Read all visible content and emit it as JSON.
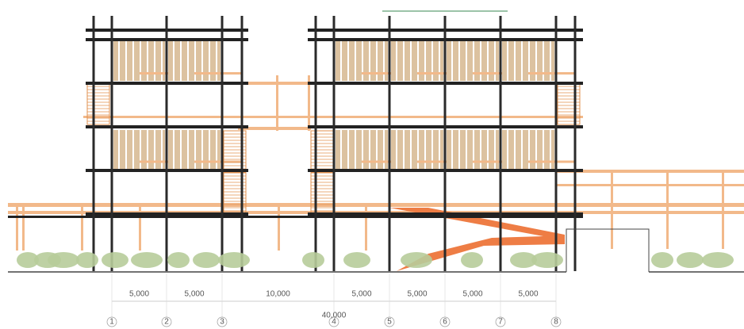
{
  "dimensions": [
    "5,000",
    "5,000",
    "10,000",
    "5,000",
    "5,000",
    "5,000",
    "5,000"
  ],
  "total": "40,000",
  "grid_labels": [
    "1",
    "2",
    "3",
    "4",
    "5",
    "6",
    "7",
    "8"
  ]
}
